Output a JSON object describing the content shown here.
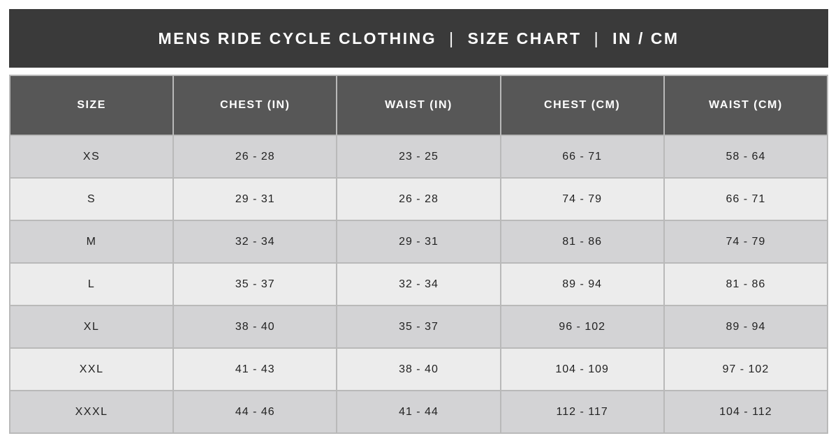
{
  "title_bar": {
    "parts": [
      "MENS RIDE CYCLE CLOTHING",
      "SIZE CHART",
      "IN / CM"
    ],
    "separator": "|",
    "background": "#3a3a3a",
    "text_color": "#ffffff"
  },
  "table": {
    "header_background": "#575757",
    "header_text_color": "#ffffff",
    "row_color_odd": "#d3d3d5",
    "row_color_even": "#ececec",
    "border_color": "#b9b9b9",
    "columns": [
      "SIZE",
      "CHEST (IN)",
      "WAIST (IN)",
      "CHEST (CM)",
      "WAIST (CM)"
    ],
    "rows": [
      {
        "size": "XS",
        "chest_in": "26 - 28",
        "waist_in": "23 - 25",
        "chest_cm": "66 - 71",
        "waist_cm": "58 - 64"
      },
      {
        "size": "S",
        "chest_in": "29 - 31",
        "waist_in": "26 - 28",
        "chest_cm": "74 - 79",
        "waist_cm": "66 - 71"
      },
      {
        "size": "M",
        "chest_in": "32 - 34",
        "waist_in": "29 - 31",
        "chest_cm": "81 - 86",
        "waist_cm": "74 - 79"
      },
      {
        "size": "L",
        "chest_in": "35 - 37",
        "waist_in": "32 - 34",
        "chest_cm": "89 - 94",
        "waist_cm": "81 - 86"
      },
      {
        "size": "XL",
        "chest_in": "38 - 40",
        "waist_in": "35 - 37",
        "chest_cm": "96 - 102",
        "waist_cm": "89 - 94"
      },
      {
        "size": "XXL",
        "chest_in": "41 - 43",
        "waist_in": "38 - 40",
        "chest_cm": "104 - 109",
        "waist_cm": "97 - 102"
      },
      {
        "size": "XXXL",
        "chest_in": "44 - 46",
        "waist_in": "41 - 44",
        "chest_cm": "112 - 117",
        "waist_cm": "104 - 112"
      }
    ]
  },
  "chart_data": {
    "type": "table",
    "title": "MENS RIDE CYCLE CLOTHING | SIZE CHART | IN / CM",
    "columns": [
      "SIZE",
      "CHEST (IN)",
      "WAIST (IN)",
      "CHEST (CM)",
      "WAIST (CM)"
    ],
    "rows": [
      [
        "XS",
        "26 - 28",
        "23 - 25",
        "66 - 71",
        "58 - 64"
      ],
      [
        "S",
        "29 - 31",
        "26 - 28",
        "74 - 79",
        "66 - 71"
      ],
      [
        "M",
        "32 - 34",
        "29 - 31",
        "81 - 86",
        "74 - 79"
      ],
      [
        "L",
        "35 - 37",
        "32 - 34",
        "89 - 94",
        "81 - 86"
      ],
      [
        "XL",
        "38 - 40",
        "35 - 37",
        "96 - 102",
        "89 - 94"
      ],
      [
        "XXL",
        "41 - 43",
        "38 - 40",
        "104 - 109",
        "97 - 102"
      ],
      [
        "XXXL",
        "44 - 46",
        "41 - 44",
        "112 - 117",
        "104 - 112"
      ]
    ]
  }
}
